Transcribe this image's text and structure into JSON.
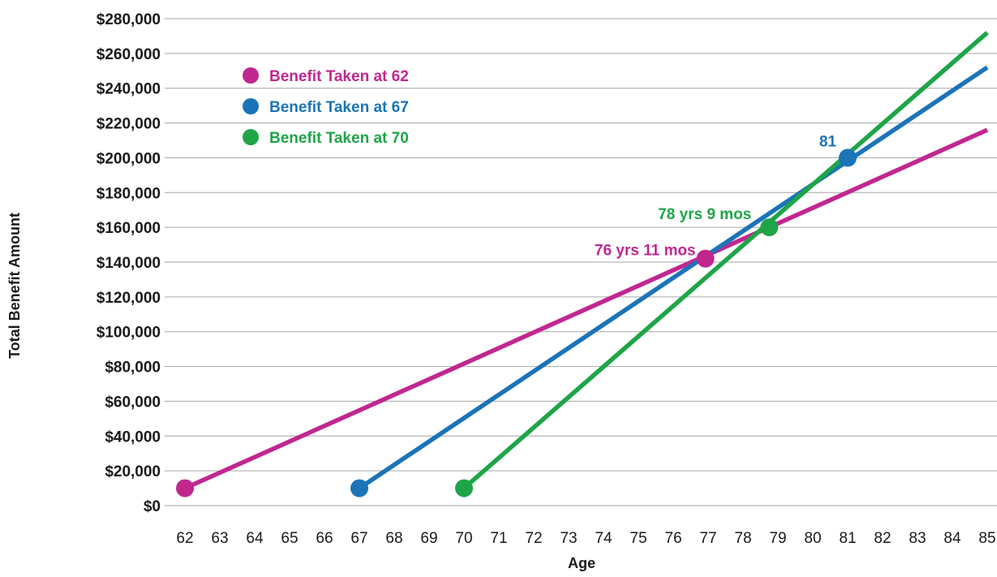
{
  "chart_data": {
    "type": "line",
    "xlabel": "Age",
    "ylabel": "Total Benefit Amount",
    "xlim": [
      62,
      85
    ],
    "ylim": [
      0,
      280000
    ],
    "x_ticks": [
      "62",
      "63",
      "64",
      "65",
      "66",
      "67",
      "68",
      "69",
      "70",
      "71",
      "72",
      "73",
      "74",
      "75",
      "76",
      "77",
      "78",
      "79",
      "80",
      "81",
      "82",
      "83",
      "84",
      "85"
    ],
    "y_ticks": [
      "$0",
      "$20,000",
      "$40,000",
      "$60,000",
      "$80,000",
      "$100,000",
      "$120,000",
      "$140,000",
      "$160,000",
      "$180,000",
      "$200,000",
      "$220,000",
      "$240,000",
      "$260,000",
      "$280,000"
    ],
    "grid": true,
    "legend_position": "top-left",
    "series": [
      {
        "name": "Benefit Taken at 62",
        "color": "#c1278f",
        "points": [
          [
            62,
            10000
          ],
          [
            85,
            216000
          ]
        ],
        "markers": [
          [
            62,
            10000
          ],
          [
            76.92,
            142000
          ]
        ]
      },
      {
        "name": "Benefit Taken at 67",
        "color": "#1b74b8",
        "points": [
          [
            67,
            10000
          ],
          [
            85,
            252000
          ]
        ],
        "markers": [
          [
            67,
            10000
          ],
          [
            81,
            200000
          ]
        ]
      },
      {
        "name": "Benefit Taken at 70",
        "color": "#1ea547",
        "points": [
          [
            70,
            10000
          ],
          [
            85,
            272000
          ]
        ],
        "markers": [
          [
            70,
            10000
          ],
          [
            78.75,
            160000
          ]
        ]
      }
    ],
    "annotations": [
      {
        "text": "76 yrs 11 mos",
        "color": "#c1278f",
        "x": 76.92,
        "y": 142000
      },
      {
        "text": "78 yrs 9 mos",
        "color": "#1ea547",
        "x": 78.75,
        "y": 160000
      },
      {
        "text": "81",
        "color": "#1b74b8",
        "x": 81,
        "y": 200000
      }
    ]
  }
}
